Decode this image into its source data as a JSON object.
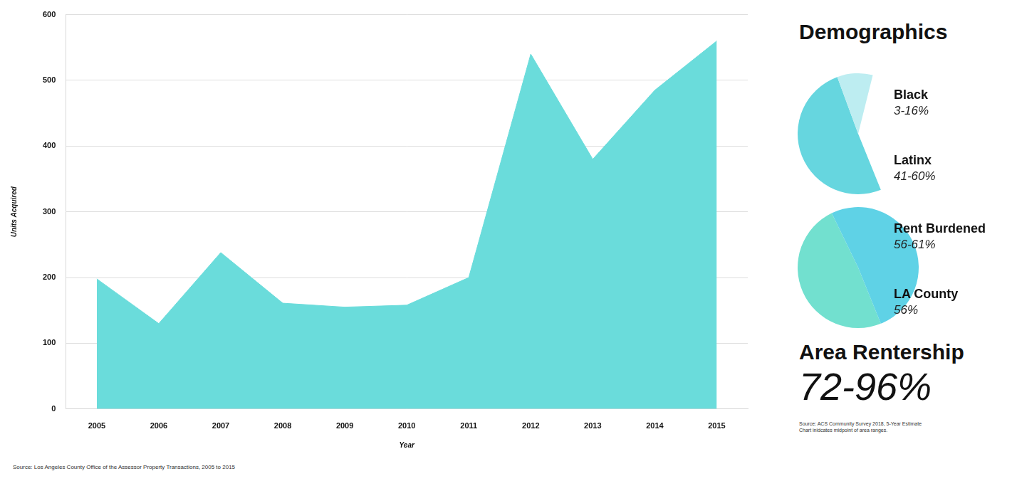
{
  "chart_data": [
    {
      "type": "area",
      "x_label": "Year",
      "y_label": "Units Acquired",
      "categories": [
        "2005",
        "2006",
        "2007",
        "2008",
        "2009",
        "2010",
        "2011",
        "2012",
        "2013",
        "2014",
        "2015"
      ],
      "values": [
        198,
        130,
        238,
        161,
        155,
        158,
        200,
        540,
        380,
        485,
        560
      ],
      "color": "#6adcdb",
      "ylim": [
        0,
        600
      ],
      "yticks": [
        0,
        100,
        200,
        300,
        400,
        500,
        600
      ],
      "grid": true,
      "note": "Source: Los Angeles County Office of the Assessor Property Transactions, 2005 to 2015"
    },
    {
      "type": "pie",
      "categories": [
        "Black",
        "Latinx"
      ],
      "values": [
        9.5,
        50.5
      ],
      "value_labels": [
        "3-16%",
        "41-60%"
      ],
      "colors": [
        "#bdedf1",
        "#66d6df"
      ]
    },
    {
      "type": "pie",
      "categories": [
        "Rent Burdened",
        "LA County"
      ],
      "values": [
        58.5,
        56
      ],
      "value_labels": [
        "56-61%",
        "56%"
      ],
      "colors": [
        "#5fd2e6",
        "#72e0cf"
      ]
    }
  ],
  "side_panel": {
    "title": "Demographics",
    "rentership_label": "Area Rentership",
    "rentership_value_label": "72-96%",
    "sources": [
      "Source: ACS Community Survey 2018, 5-Year Estimate",
      "Chart inidcates midpoint of area ranges."
    ]
  }
}
